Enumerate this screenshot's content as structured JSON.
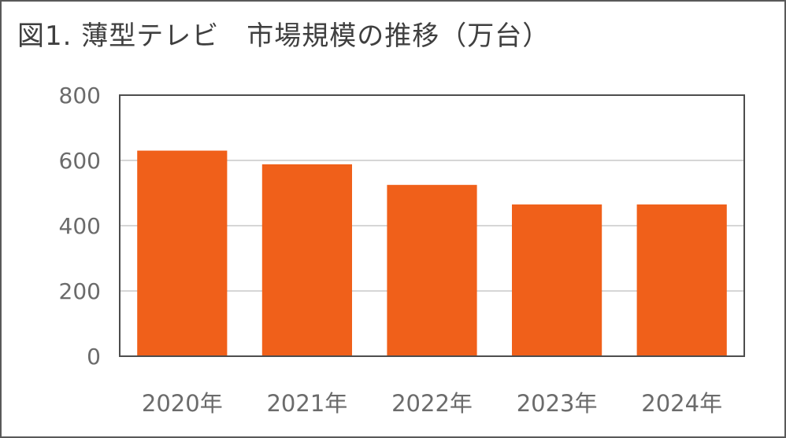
{
  "chart_data": {
    "type": "bar",
    "title": "図1. 薄型テレビ　市場規模の推移（万台）",
    "categories": [
      "2020年",
      "2021年",
      "2022年",
      "2023年",
      "2024年"
    ],
    "series": [
      {
        "values": [
          630,
          588,
          525,
          465,
          465
        ]
      }
    ],
    "ylim": [
      0,
      800
    ],
    "yticks": [
      0,
      200,
      400,
      600,
      800
    ],
    "grid": true,
    "legend": "none",
    "colors": {
      "bar": "#f0601a",
      "grid": "#c8c8c8",
      "plot_border": "#4d4d4d",
      "text": "#6b6b6b"
    }
  }
}
